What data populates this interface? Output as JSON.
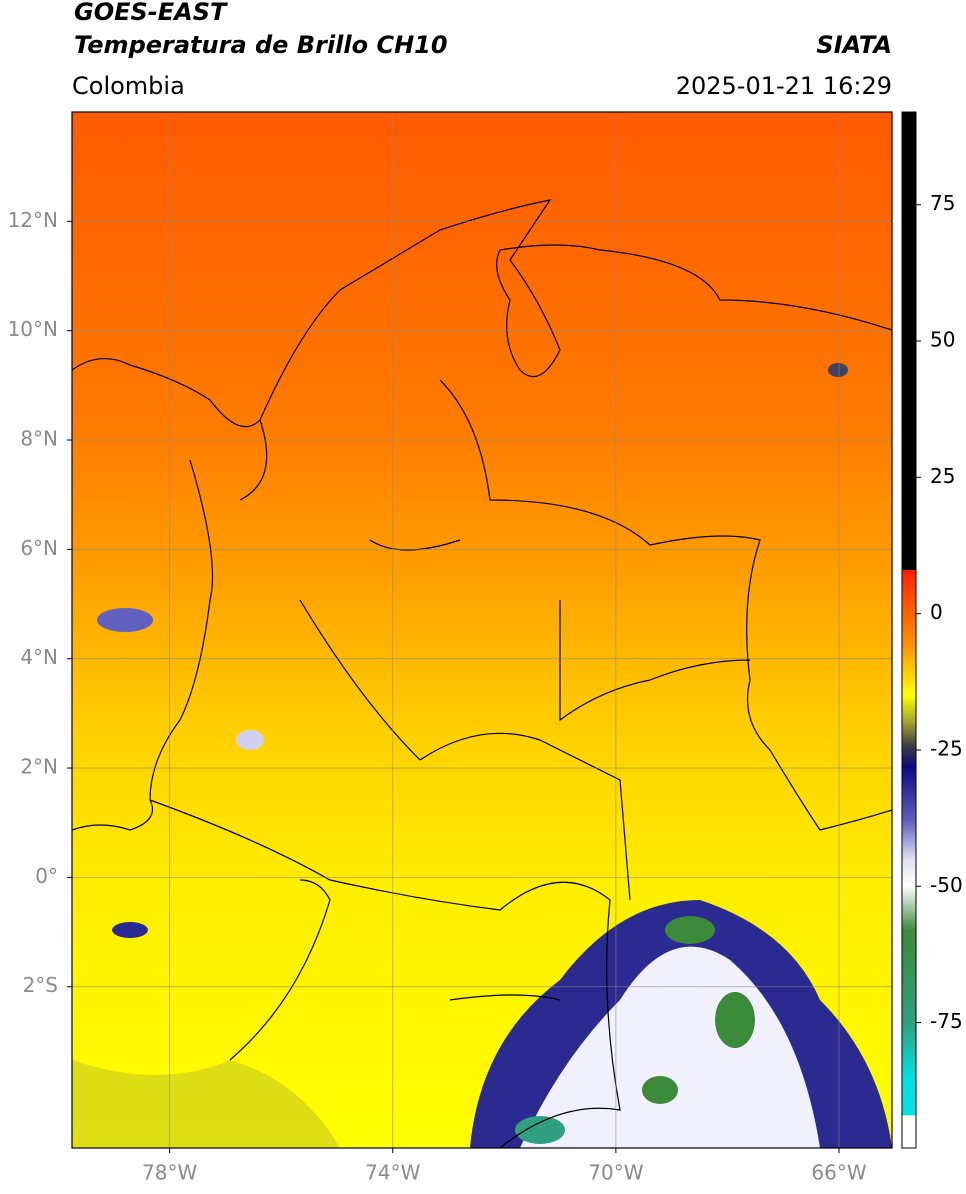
{
  "header": {
    "title": "GOES-EAST",
    "subtitle": "Temperatura de Brillo CH10",
    "source": "SIATA",
    "region": "Colombia",
    "timestamp": "2025-01-21 16:29"
  },
  "chart_data": {
    "type": "map",
    "xlim": [
      -79.75,
      -65.05
    ],
    "ylim": [
      -4.95,
      14.0
    ],
    "xticks": [
      {
        "value": -78,
        "label": "78°W"
      },
      {
        "value": -74,
        "label": "74°W"
      },
      {
        "value": -70,
        "label": "70°W"
      },
      {
        "value": -66,
        "label": "66°W"
      }
    ],
    "yticks": [
      {
        "value": 12,
        "label": "12°N"
      },
      {
        "value": 10,
        "label": "10°N"
      },
      {
        "value": 8,
        "label": "8°N"
      },
      {
        "value": 6,
        "label": "6°N"
      },
      {
        "value": 4,
        "label": "4°N"
      },
      {
        "value": 2,
        "label": "2°N"
      },
      {
        "value": 0,
        "label": "0°"
      },
      {
        "value": -2,
        "label": "2°S"
      }
    ],
    "grid": true,
    "colorbar": {
      "lim": [
        -98,
        92
      ],
      "ticks": [
        75,
        50,
        25,
        0,
        -25,
        -50,
        -75
      ],
      "stops": [
        {
          "value": 92,
          "color": "#000000"
        },
        {
          "value": 8,
          "color": "#000000"
        },
        {
          "value": 8,
          "color": "#ff2200"
        },
        {
          "value": -5,
          "color": "#ff8c00"
        },
        {
          "value": -15,
          "color": "#ffff00"
        },
        {
          "value": -20,
          "color": "#a0a030"
        },
        {
          "value": -24,
          "color": "#404040"
        },
        {
          "value": -28,
          "color": "#0a0a80"
        },
        {
          "value": -38,
          "color": "#6060c0"
        },
        {
          "value": -45,
          "color": "#e0e0f0"
        },
        {
          "value": -50,
          "color": "#ffffff"
        },
        {
          "value": -58,
          "color": "#3a8a3a"
        },
        {
          "value": -75,
          "color": "#30a080"
        },
        {
          "value": -85,
          "color": "#00e0e0"
        },
        {
          "value": -92,
          "color": "#00e0e0"
        },
        {
          "value": -92,
          "color": "#ffffff"
        },
        {
          "value": -98,
          "color": "#ffffff"
        }
      ]
    }
  }
}
